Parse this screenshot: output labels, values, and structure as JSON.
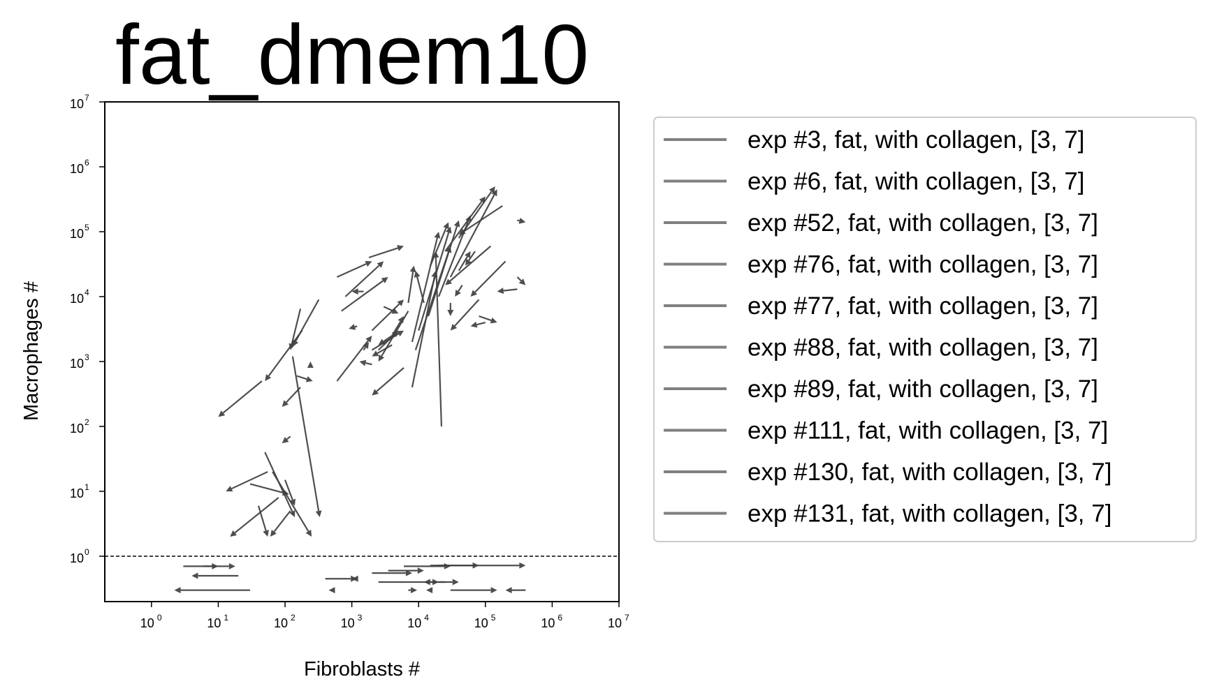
{
  "chart_data": {
    "type": "quiver",
    "title": "fat_dmem10",
    "xlabel": "Fibroblasts #",
    "ylabel": "Macrophages #",
    "xscale": "log",
    "yscale": "log",
    "xlim": [
      0.2,
      10000000
    ],
    "ylim": [
      0.2,
      10000000
    ],
    "x_ticks": [
      {
        "base": "10",
        "exp": "0",
        "value": 1
      },
      {
        "base": "10",
        "exp": "1",
        "value": 10
      },
      {
        "base": "10",
        "exp": "2",
        "value": 100
      },
      {
        "base": "10",
        "exp": "3",
        "value": 1000
      },
      {
        "base": "10",
        "exp": "4",
        "value": 10000
      },
      {
        "base": "10",
        "exp": "5",
        "value": 100000
      },
      {
        "base": "10",
        "exp": "6",
        "value": 1000000
      },
      {
        "base": "10",
        "exp": "7",
        "value": 10000000
      }
    ],
    "y_ticks": [
      {
        "base": "10",
        "exp": "0",
        "value": 1
      },
      {
        "base": "10",
        "exp": "1",
        "value": 10
      },
      {
        "base": "10",
        "exp": "2",
        "value": 100
      },
      {
        "base": "10",
        "exp": "3",
        "value": 1000
      },
      {
        "base": "10",
        "exp": "4",
        "value": 10000
      },
      {
        "base": "10",
        "exp": "5",
        "value": 100000
      },
      {
        "base": "10",
        "exp": "6",
        "value": 1000000
      },
      {
        "base": "10",
        "exp": "7",
        "value": 10000000
      }
    ],
    "reference_line": {
      "y": 1,
      "style": "dashed"
    },
    "arrow_color": "#404040",
    "legend_line_color": "#808080",
    "legend_position": "outside right",
    "legend": [
      "exp #3, fat, with collagen, [3, 7]",
      "exp #6, fat, with collagen, [3, 7]",
      "exp #52, fat, with collagen, [3, 7]",
      "exp #76, fat, with collagen, [3, 7]",
      "exp #77, fat, with collagen, [3, 7]",
      "exp #88, fat, with collagen, [3, 7]",
      "exp #89, fat, with collagen, [3, 7]",
      "exp #111, fat, with collagen, [3, 7]",
      "exp #130, fat, with collagen, [3, 7]",
      "exp #131, fat, with collagen, [3, 7]"
    ],
    "arrows": [
      {
        "x0": 45,
        "y0": 500,
        "x1": 10,
        "y1": 140
      },
      {
        "x0": 180,
        "y0": 3000,
        "x1": 50,
        "y1": 500
      },
      {
        "x0": 170,
        "y0": 6500,
        "x1": 120,
        "y1": 1500
      },
      {
        "x0": 320,
        "y0": 9000,
        "x1": 130,
        "y1": 1700
      },
      {
        "x0": 130,
        "y0": 1200,
        "x1": 330,
        "y1": 4
      },
      {
        "x0": 170,
        "y0": 400,
        "x1": 90,
        "y1": 200
      },
      {
        "x0": 150,
        "y0": 600,
        "x1": 260,
        "y1": 500
      },
      {
        "x0": 240,
        "y0": 900,
        "x1": 240,
        "y1": 1000
      },
      {
        "x0": 120,
        "y0": 70,
        "x1": 90,
        "y1": 55
      },
      {
        "x0": 55,
        "y0": 20,
        "x1": 13,
        "y1": 10
      },
      {
        "x0": 30,
        "y0": 13,
        "x1": 115,
        "y1": 9
      },
      {
        "x0": 50,
        "y0": 40,
        "x1": 140,
        "y1": 4
      },
      {
        "x0": 65,
        "y0": 20,
        "x1": 250,
        "y1": 2
      },
      {
        "x0": 80,
        "y0": 8,
        "x1": 15,
        "y1": 2
      },
      {
        "x0": 120,
        "y0": 5,
        "x1": 60,
        "y1": 2
      },
      {
        "x0": 40,
        "y0": 6,
        "x1": 55,
        "y1": 2
      },
      {
        "x0": 100,
        "y0": 15,
        "x1": 140,
        "y1": 6
      },
      {
        "x0": 600,
        "y0": 20000,
        "x1": 2000,
        "y1": 35000
      },
      {
        "x0": 800,
        "y0": 10000,
        "x1": 3000,
        "y1": 35000
      },
      {
        "x0": 1800,
        "y0": 40000,
        "x1": 6000,
        "y1": 60000
      },
      {
        "x0": 700,
        "y0": 6000,
        "x1": 3500,
        "y1": 20000
      },
      {
        "x0": 1500,
        "y0": 12000,
        "x1": 1000,
        "y1": 12000
      },
      {
        "x0": 3000,
        "y0": 7000,
        "x1": 5000,
        "y1": 5500
      },
      {
        "x0": 2000,
        "y0": 3000,
        "x1": 6000,
        "y1": 9000
      },
      {
        "x0": 1500,
        "y0": 1500,
        "x1": 1800,
        "y1": 2000
      },
      {
        "x0": 4000,
        "y0": 2500,
        "x1": 6000,
        "y1": 5000
      },
      {
        "x0": 2500,
        "y0": 1500,
        "x1": 5000,
        "y1": 3000
      },
      {
        "x0": 1200,
        "y0": 3500,
        "x1": 900,
        "y1": 3200
      },
      {
        "x0": 4000,
        "y0": 1800,
        "x1": 2000,
        "y1": 1200
      },
      {
        "x0": 2000,
        "y0": 900,
        "x1": 1300,
        "y1": 1000
      },
      {
        "x0": 7000,
        "y0": 6000,
        "x1": 2500,
        "y1": 1000
      },
      {
        "x0": 600,
        "y0": 500,
        "x1": 2000,
        "y1": 2500
      },
      {
        "x0": 8000,
        "y0": 400,
        "x1": 18000,
        "y1": 25000
      },
      {
        "x0": 6000,
        "y0": 800,
        "x1": 2000,
        "y1": 300
      },
      {
        "x0": 2000,
        "y0": 1500,
        "x1": 6000,
        "y1": 3000
      },
      {
        "x0": 4000,
        "y0": 2500,
        "x1": 2500,
        "y1": 1800
      },
      {
        "x0": 8000,
        "y0": 2000,
        "x1": 20000,
        "y1": 100000
      },
      {
        "x0": 10000,
        "y0": 3000,
        "x1": 30000,
        "y1": 120000
      },
      {
        "x0": 14000,
        "y0": 5000,
        "x1": 40000,
        "y1": 150000
      },
      {
        "x0": 20000,
        "y0": 10000,
        "x1": 60000,
        "y1": 180000
      },
      {
        "x0": 30000,
        "y0": 20000,
        "x1": 150000,
        "y1": 450000
      },
      {
        "x0": 22000,
        "y0": 100,
        "x1": 18000,
        "y1": 50000
      },
      {
        "x0": 9000,
        "y0": 1500,
        "x1": 30000,
        "y1": 60000
      },
      {
        "x0": 12000,
        "y0": 8000,
        "x1": 9000,
        "y1": 25000
      },
      {
        "x0": 7000,
        "y0": 8000,
        "x1": 8500,
        "y1": 30000
      },
      {
        "x0": 15000,
        "y0": 30000,
        "x1": 28000,
        "y1": 140000
      },
      {
        "x0": 25000,
        "y0": 50000,
        "x1": 100000,
        "y1": 350000
      },
      {
        "x0": 40000,
        "y0": 80000,
        "x1": 140000,
        "y1": 500000
      },
      {
        "x0": 180000,
        "y0": 250000,
        "x1": 40000,
        "y1": 90000
      },
      {
        "x0": 120000,
        "y0": 60000,
        "x1": 25000,
        "y1": 15000
      },
      {
        "x0": 80000,
        "y0": 9000,
        "x1": 30000,
        "y1": 3000
      },
      {
        "x0": 80000,
        "y0": 5000,
        "x1": 150000,
        "y1": 4000
      },
      {
        "x0": 100000,
        "y0": 4000,
        "x1": 60000,
        "y1": 3500
      },
      {
        "x0": 200000,
        "y0": 35000,
        "x1": 60000,
        "y1": 10000
      },
      {
        "x0": 300000,
        "y0": 13000,
        "x1": 150000,
        "y1": 12000
      },
      {
        "x0": 300000,
        "y0": 20000,
        "x1": 400000,
        "y1": 15000
      },
      {
        "x0": 300000,
        "y0": 150000,
        "x1": 400000,
        "y1": 140000
      },
      {
        "x0": 70000,
        "y0": 50000,
        "x1": 50000,
        "y1": 30000
      },
      {
        "x0": 40000,
        "y0": 25000,
        "x1": 60000,
        "y1": 50000
      },
      {
        "x0": 45000,
        "y0": 15000,
        "x1": 35000,
        "y1": 10000
      },
      {
        "x0": 30000,
        "y0": 8000,
        "x1": 30000,
        "y1": 5000
      },
      {
        "x0": 3,
        "y0": 0.7,
        "x1": 10,
        "y1": 0.7
      },
      {
        "x0": 6,
        "y0": 0.7,
        "x1": 18,
        "y1": 0.7
      },
      {
        "x0": 20,
        "y0": 0.5,
        "x1": 4,
        "y1": 0.5
      },
      {
        "x0": 30,
        "y0": 0.3,
        "x1": 2.2,
        "y1": 0.3
      },
      {
        "x0": 400,
        "y0": 0.45,
        "x1": 1200,
        "y1": 0.45
      },
      {
        "x0": 1100,
        "y0": 0.45,
        "x1": 1000,
        "y1": 0.45
      },
      {
        "x0": 2000,
        "y0": 0.55,
        "x1": 8000,
        "y1": 0.55
      },
      {
        "x0": 3500,
        "y0": 0.6,
        "x1": 12000,
        "y1": 0.6
      },
      {
        "x0": 6000,
        "y0": 0.7,
        "x1": 30000,
        "y1": 0.7
      },
      {
        "x0": 15000,
        "y0": 0.72,
        "x1": 80000,
        "y1": 0.72
      },
      {
        "x0": 20000,
        "y0": 0.72,
        "x1": 400000,
        "y1": 0.72
      },
      {
        "x0": 2500,
        "y0": 0.4,
        "x1": 20000,
        "y1": 0.4
      },
      {
        "x0": 25000,
        "y0": 0.4,
        "x1": 12000,
        "y1": 0.4
      },
      {
        "x0": 20000,
        "y0": 0.4,
        "x1": 40000,
        "y1": 0.4
      },
      {
        "x0": 30000,
        "y0": 0.3,
        "x1": 150000,
        "y1": 0.3
      },
      {
        "x0": 400000,
        "y0": 0.3,
        "x1": 200000,
        "y1": 0.3
      },
      {
        "x0": 500,
        "y0": 0.3,
        "x1": 450,
        "y1": 0.3
      },
      {
        "x0": 7000,
        "y0": 0.3,
        "x1": 9500,
        "y1": 0.3
      },
      {
        "x0": 15000,
        "y0": 0.3,
        "x1": 13000,
        "y1": 0.3
      }
    ]
  }
}
